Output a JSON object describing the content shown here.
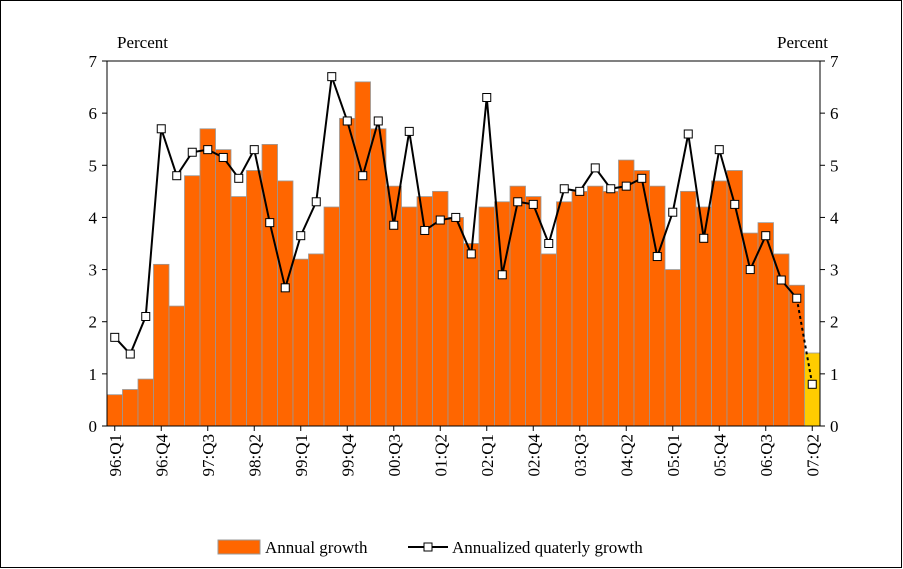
{
  "chart_data": {
    "type": "bar_line",
    "y_label": "Percent",
    "y2_label": "Percent",
    "categories": [
      "96:Q1",
      null,
      null,
      "96:Q4",
      null,
      null,
      "97:Q3",
      null,
      null,
      "98:Q2",
      null,
      null,
      "99:Q1",
      null,
      null,
      "99:Q4",
      null,
      null,
      "00:Q3",
      null,
      null,
      "01:Q2",
      null,
      null,
      "02:Q1",
      null,
      null,
      "02:Q4",
      null,
      null,
      "03:Q3",
      null,
      null,
      "04:Q2",
      null,
      null,
      "05:Q1",
      null,
      null,
      "05:Q4",
      null,
      null,
      "06:Q3",
      null,
      null,
      "07:Q2"
    ],
    "series": [
      {
        "name": "Annual growth",
        "type": "bar",
        "color": "#ff6600",
        "colors": [
          "#ff6600",
          "#ff6600",
          "#ff6600",
          "#ff6600",
          "#ff6600",
          "#ff6600",
          "#ff6600",
          "#ff6600",
          "#ff6600",
          "#ff6600",
          "#ff6600",
          "#ff6600",
          "#ff6600",
          "#ff6600",
          "#ff6600",
          "#ff6600",
          "#ff6600",
          "#ff6600",
          "#ff6600",
          "#ff6600",
          "#ff6600",
          "#ff6600",
          "#ff6600",
          "#ff6600",
          "#ff6600",
          "#ff6600",
          "#ff6600",
          "#ff6600",
          "#ff6600",
          "#ff6600",
          "#ff6600",
          "#ff6600",
          "#ff6600",
          "#ff6600",
          "#ff6600",
          "#ff6600",
          "#ff6600",
          "#ff6600",
          "#ff6600",
          "#ff6600",
          "#ff6600",
          "#ff6600",
          "#ff6600",
          "#ff6600",
          "#ff6600",
          "#ffcc00"
        ],
        "values": [
          0.6,
          0.7,
          0.9,
          3.1,
          2.3,
          4.8,
          5.7,
          5.3,
          4.4,
          4.9,
          5.4,
          4.7,
          3.2,
          3.3,
          4.2,
          5.9,
          6.6,
          5.7,
          4.6,
          4.2,
          4.4,
          4.5,
          4.0,
          3.5,
          4.2,
          4.3,
          4.6,
          4.4,
          3.3,
          4.3,
          4.5,
          4.6,
          4.5,
          5.1,
          4.9,
          4.6,
          3.0,
          4.5,
          4.2,
          4.7,
          4.9,
          3.7,
          3.9,
          3.3,
          2.7,
          1.4
        ]
      },
      {
        "name": "Annualized quaterly growth",
        "type": "line",
        "color": "#000000",
        "values": [
          1.7,
          1.38,
          2.1,
          5.7,
          4.8,
          5.25,
          5.3,
          5.15,
          4.75,
          5.3,
          3.9,
          2.65,
          3.65,
          4.3,
          6.7,
          5.85,
          4.8,
          5.85,
          3.85,
          5.65,
          3.75,
          3.95,
          4.0,
          3.3,
          6.3,
          2.9,
          4.3,
          4.25,
          3.5,
          4.55,
          4.5,
          4.95,
          4.55,
          4.6,
          4.75,
          3.25,
          4.1,
          5.6,
          3.6,
          5.3,
          4.25,
          3.0,
          3.65,
          2.8,
          2.45,
          0.8
        ]
      }
    ],
    "ylim": [
      0,
      7
    ],
    "yticks": [
      0,
      1,
      2,
      3,
      4,
      5,
      6,
      7
    ],
    "y2lim": [
      0,
      7
    ],
    "y2ticks": [
      0,
      1,
      2,
      3,
      4,
      5,
      6,
      7
    ],
    "legend": "bottom"
  }
}
